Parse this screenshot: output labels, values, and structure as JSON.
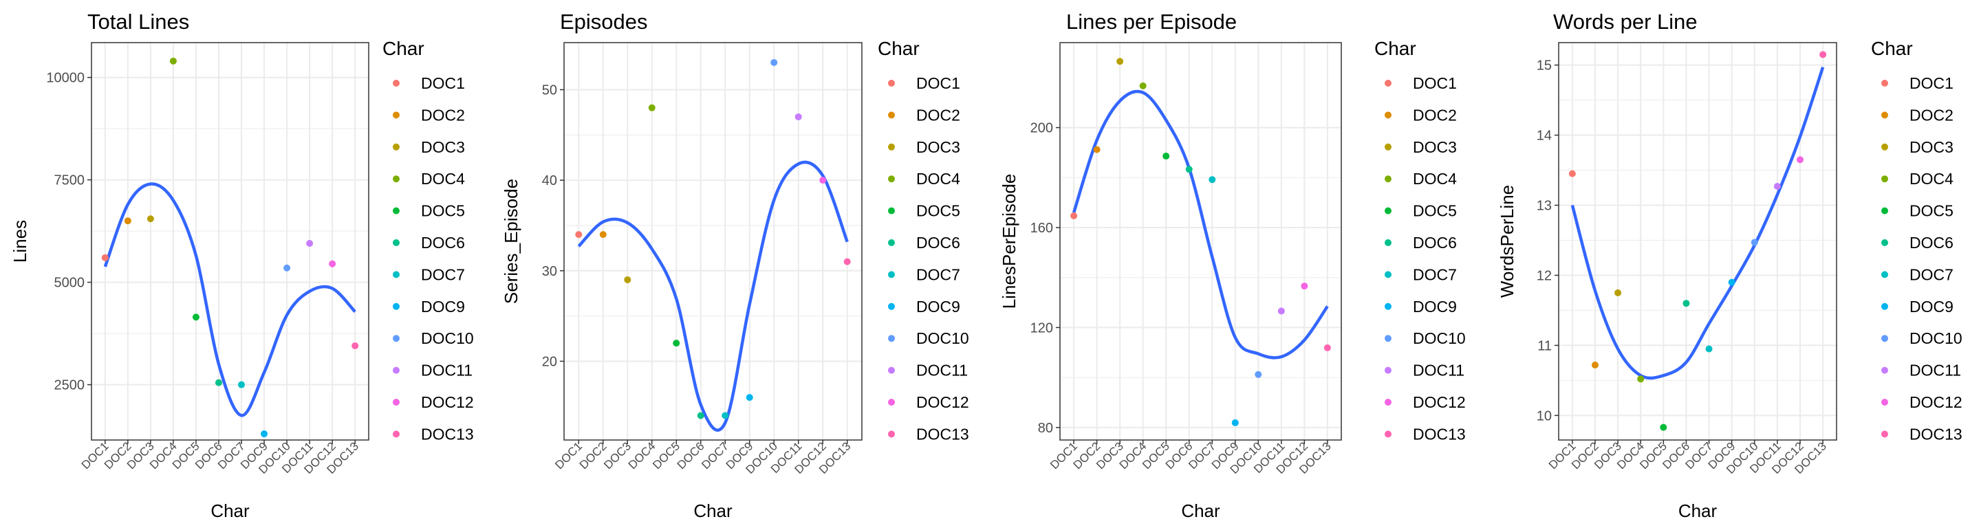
{
  "chart_data": [
    {
      "type": "scatter",
      "title": "Total Lines",
      "xlabel": "Char",
      "ylabel": "Lines",
      "categories": [
        "DOC1",
        "DOC2",
        "DOC3",
        "DOC4",
        "DOC5",
        "DOC6",
        "DOC7",
        "DOC9",
        "DOC10",
        "DOC11",
        "DOC12",
        "DOC13"
      ],
      "ylim": [
        1150,
        10850
      ],
      "yticks": [
        2500,
        5000,
        7500,
        10000
      ],
      "ytick_labels": [
        "2500",
        "5000",
        "7500",
        "10000"
      ],
      "points": [
        5600,
        6500,
        6550,
        10400,
        4150,
        2550,
        2500,
        1300,
        5350,
        5950,
        5450,
        3450
      ],
      "smooth": [
        5380,
        6900,
        7400,
        7000,
        5650,
        3000,
        1750,
        2800,
        4200,
        4780,
        4850,
        4280
      ],
      "legend_title": "Char"
    },
    {
      "type": "scatter",
      "title": "Episodes",
      "xlabel": "Char",
      "ylabel": "Series_Episode",
      "categories": [
        "DOC1",
        "DOC2",
        "DOC3",
        "DOC4",
        "DOC5",
        "DOC6",
        "DOC7",
        "DOC9",
        "DOC10",
        "DOC11",
        "DOC12",
        "DOC13"
      ],
      "ylim": [
        11.3,
        55.2
      ],
      "yticks": [
        20,
        30,
        40,
        50
      ],
      "ytick_labels": [
        "20",
        "30",
        "40",
        "50"
      ],
      "points": [
        34,
        34,
        29,
        48,
        22,
        14,
        14,
        16,
        53,
        47,
        40,
        31
      ],
      "smooth": [
        32.7,
        35.4,
        35.3,
        32.4,
        26.9,
        15.2,
        13.2,
        26.3,
        37.8,
        41.8,
        40.5,
        33.2
      ],
      "legend_title": "Char"
    },
    {
      "type": "scatter",
      "title": "Lines per Episode",
      "xlabel": "Char",
      "ylabel": "LinesPerEpisode",
      "categories": [
        "DOC1",
        "DOC2",
        "DOC3",
        "DOC4",
        "DOC5",
        "DOC6",
        "DOC7",
        "DOC9",
        "DOC10",
        "DOC11",
        "DOC12",
        "DOC13"
      ],
      "ylim": [
        75,
        234
      ],
      "yticks": [
        80,
        120,
        160,
        200
      ],
      "ytick_labels": [
        "80",
        "120",
        "160",
        "200"
      ],
      "points": [
        164.7,
        191.2,
        226.5,
        216.7,
        188.6,
        183.3,
        179.2,
        81.9,
        101.2,
        126.6,
        136.6,
        111.9
      ],
      "smooth": [
        166,
        195,
        210.7,
        214,
        203,
        183.8,
        148.3,
        116,
        109.5,
        108.3,
        115,
        128.5
      ],
      "legend_title": "Char"
    },
    {
      "type": "scatter",
      "title": "Words per Line",
      "xlabel": "Char",
      "ylabel": "WordsPerLine",
      "categories": [
        "DOC1",
        "DOC2",
        "DOC3",
        "DOC4",
        "DOC5",
        "DOC6",
        "DOC7",
        "DOC9",
        "DOC10",
        "DOC11",
        "DOC12",
        "DOC13"
      ],
      "ylim": [
        9.65,
        15.32
      ],
      "yticks": [
        10,
        11,
        12,
        13,
        14,
        15
      ],
      "ytick_labels": [
        "10",
        "11",
        "12",
        "13",
        "14",
        "15"
      ],
      "points": [
        13.45,
        10.72,
        11.75,
        10.52,
        9.83,
        11.6,
        10.95,
        11.9,
        12.47,
        13.27,
        13.65,
        15.15
      ],
      "smooth": [
        13.0,
        11.78,
        10.95,
        10.57,
        10.57,
        10.76,
        11.31,
        11.85,
        12.43,
        13.15,
        13.98,
        14.97
      ],
      "legend_title": "Char"
    }
  ],
  "legend": {
    "title": "Char",
    "items": [
      {
        "label": "DOC1",
        "color": "#F8766D"
      },
      {
        "label": "DOC2",
        "color": "#DE8C00"
      },
      {
        "label": "DOC3",
        "color": "#B79F00"
      },
      {
        "label": "DOC4",
        "color": "#7CAE00"
      },
      {
        "label": "DOC5",
        "color": "#00BA38"
      },
      {
        "label": "DOC6",
        "color": "#00C08B"
      },
      {
        "label": "DOC7",
        "color": "#00BFC4"
      },
      {
        "label": "DOC9",
        "color": "#00B4F0"
      },
      {
        "label": "DOC10",
        "color": "#619CFF"
      },
      {
        "label": "DOC11",
        "color": "#C77CFF"
      },
      {
        "label": "DOC12",
        "color": "#F564E3"
      },
      {
        "label": "DOC13",
        "color": "#FF64B0"
      }
    ]
  },
  "colors": {
    "smooth_line": "#3366FF",
    "grid": "#EBEBEB",
    "panel_border": "#333333",
    "text": "#000000",
    "tick_text": "#4D4D4D"
  }
}
